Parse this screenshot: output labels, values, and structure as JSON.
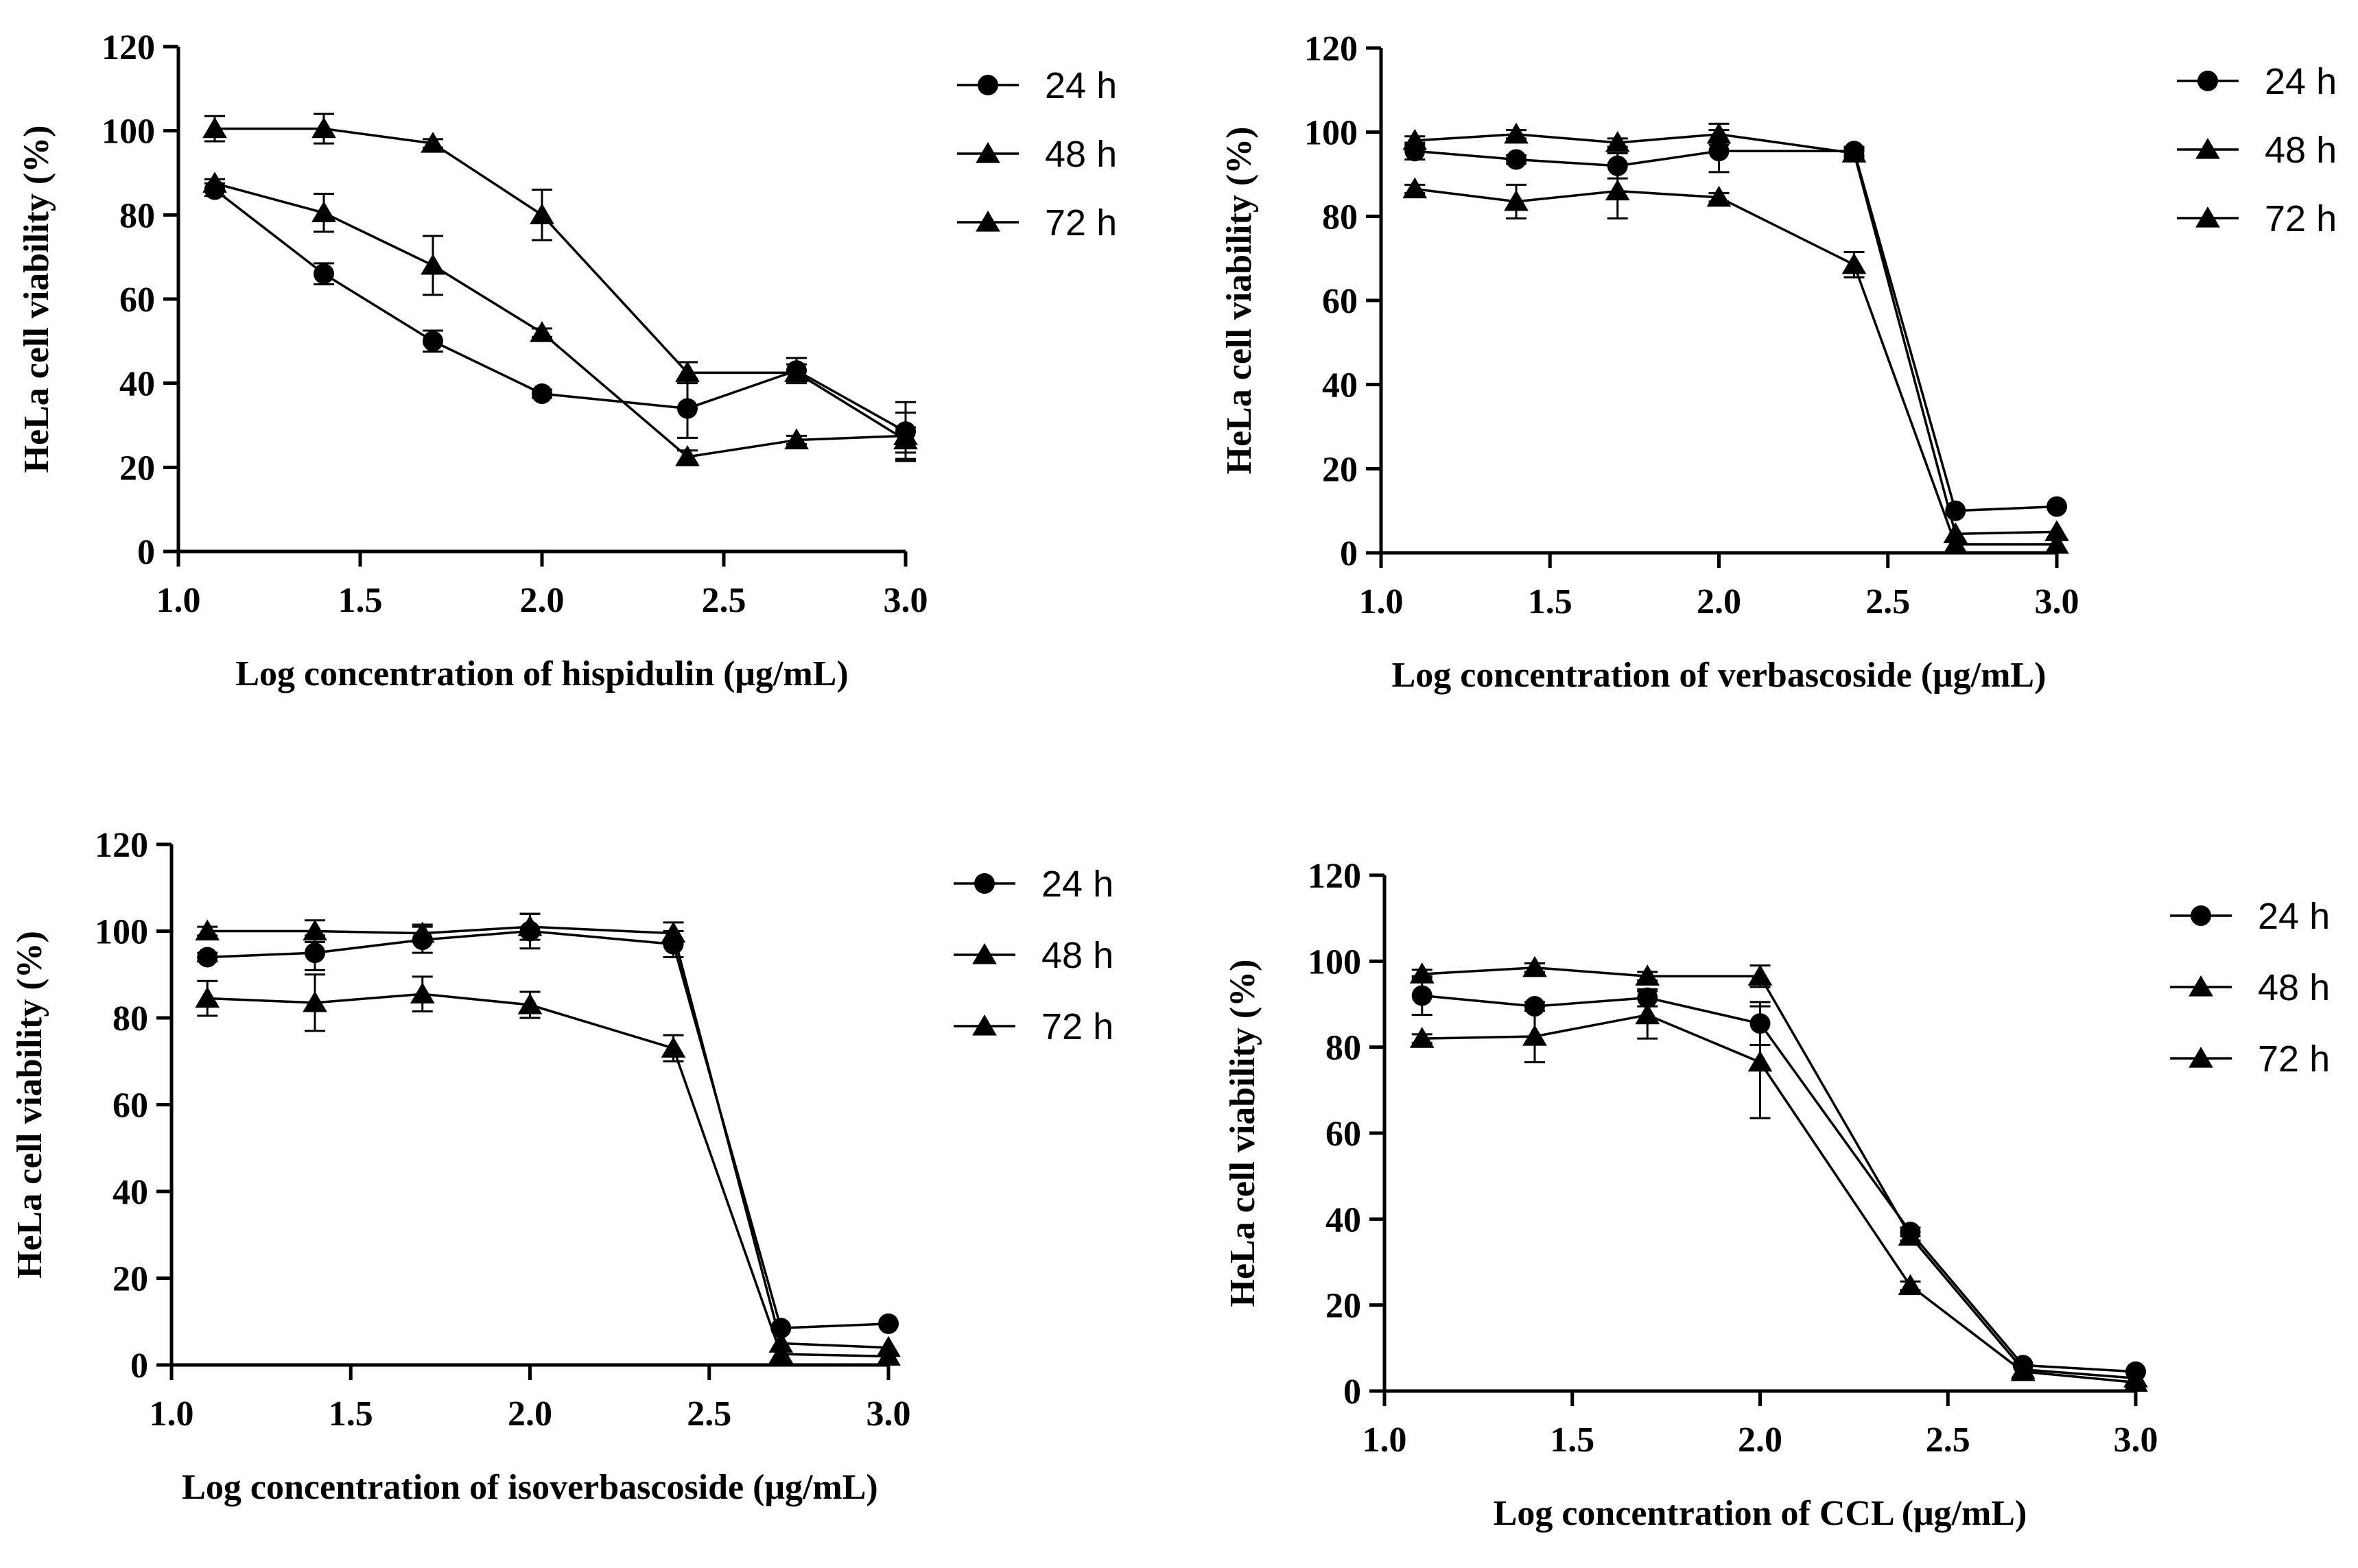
{
  "chart_data": [
    {
      "type": "line",
      "xlabel": "Log concentration of hispidulin (μg/mL)",
      "ylabel": "HeLa cell viability (%)",
      "xlim": [
        1.0,
        3.0
      ],
      "ylim": [
        0,
        120
      ],
      "xticks": [
        "1.0",
        "1.5",
        "2.0",
        "2.5",
        "3.0"
      ],
      "yticks": [
        "0",
        "20",
        "40",
        "60",
        "80",
        "100",
        "120"
      ],
      "legend_position": "top-right",
      "x": [
        1.1,
        1.4,
        1.7,
        2.0,
        2.4,
        2.7,
        3.0
      ],
      "series": [
        {
          "name": "24 h",
          "marker": "circle",
          "values": [
            86,
            66,
            50,
            37.5,
            34,
            43,
            28.5
          ],
          "errors": [
            1.5,
            2.5,
            2.5,
            1,
            7,
            3,
            7
          ]
        },
        {
          "name": "48 h",
          "marker": "triangle",
          "values": [
            100.5,
            100.5,
            97,
            80,
            42.5,
            42.5,
            26.5
          ],
          "errors": [
            3,
            3.5,
            1,
            6,
            2.5,
            2,
            3
          ]
        },
        {
          "name": "72 h",
          "marker": "triangle",
          "values": [
            87.5,
            80.5,
            68,
            52,
            22.5,
            26.5,
            27.5
          ],
          "errors": [
            1,
            4.5,
            7,
            1,
            1.5,
            1,
            5.5
          ]
        }
      ]
    },
    {
      "type": "line",
      "xlabel": "Log concentration of verbascoside (μg/mL)",
      "ylabel": "HeLa cell viability (%)",
      "xlim": [
        1.0,
        3.0
      ],
      "ylim": [
        0,
        120
      ],
      "xticks": [
        "1.0",
        "1.5",
        "2.0",
        "2.5",
        "3.0"
      ],
      "yticks": [
        "0",
        "20",
        "40",
        "60",
        "80",
        "100",
        "120"
      ],
      "legend_position": "top-right",
      "x": [
        1.1,
        1.4,
        1.7,
        2.0,
        2.4,
        2.7,
        3.0
      ],
      "series": [
        {
          "name": "24 h",
          "marker": "circle",
          "values": [
            95.5,
            93.5,
            92,
            95.5,
            95.5,
            10,
            11
          ],
          "errors": [
            2,
            1,
            3,
            5,
            1,
            0.5,
            0.5
          ]
        },
        {
          "name": "48 h",
          "marker": "triangle",
          "values": [
            98,
            99.5,
            97.5,
            99.5,
            95,
            4.5,
            5
          ],
          "errors": [
            1,
            1,
            1,
            2.5,
            1,
            0.5,
            0.5
          ]
        },
        {
          "name": "72 h",
          "marker": "triangle",
          "values": [
            86.5,
            83.5,
            86,
            84.5,
            68.5,
            2,
            2
          ],
          "errors": [
            1,
            4,
            6.5,
            1,
            3,
            0.5,
            0.5
          ]
        }
      ]
    },
    {
      "type": "line",
      "xlabel": "Log concentration of isoverbascoside (μg/mL)",
      "ylabel": "HeLa cell viability (%)",
      "xlim": [
        1.0,
        3.0
      ],
      "ylim": [
        0,
        120
      ],
      "xticks": [
        "1.0",
        "1.5",
        "2.0",
        "2.5",
        "3.0"
      ],
      "yticks": [
        "0",
        "20",
        "40",
        "60",
        "80",
        "100",
        "120"
      ],
      "legend_position": "top-right",
      "x": [
        1.1,
        1.4,
        1.7,
        2.0,
        2.4,
        2.7,
        3.0
      ],
      "series": [
        {
          "name": "24 h",
          "marker": "circle",
          "values": [
            94,
            95,
            98,
            100,
            97,
            8.5,
            9.5
          ],
          "errors": [
            1,
            4,
            3,
            4,
            3,
            0.5,
            0.5
          ]
        },
        {
          "name": "48 h",
          "marker": "triangle",
          "values": [
            100,
            100,
            99.5,
            101,
            99.5,
            5,
            4
          ],
          "errors": [
            1,
            2.5,
            2,
            3,
            2.5,
            0.5,
            0.5
          ]
        },
        {
          "name": "72 h",
          "marker": "triangle",
          "values": [
            84.5,
            83.5,
            85.5,
            83,
            73,
            2.5,
            2
          ],
          "errors": [
            4,
            6.5,
            4,
            3,
            3,
            0.5,
            0.5
          ]
        }
      ]
    },
    {
      "type": "line",
      "xlabel": "Log concentration of CCL (μg/mL)",
      "ylabel": "HeLa cell viability (%)",
      "xlim": [
        1.0,
        3.0
      ],
      "ylim": [
        0,
        120
      ],
      "xticks": [
        "1.0",
        "1.5",
        "2.0",
        "2.5",
        "3.0"
      ],
      "yticks": [
        "0",
        "20",
        "40",
        "60",
        "80",
        "100",
        "120"
      ],
      "legend_position": "top-right",
      "x": [
        1.1,
        1.4,
        1.7,
        2.0,
        2.4,
        2.7,
        3.0
      ],
      "series": [
        {
          "name": "24 h",
          "marker": "circle",
          "values": [
            92,
            89.5,
            91.5,
            85.5,
            37,
            6,
            4.5
          ],
          "errors": [
            4.5,
            1,
            2,
            5,
            1,
            0.5,
            0.5
          ]
        },
        {
          "name": "48 h",
          "marker": "triangle",
          "values": [
            97,
            98.5,
            96.5,
            96.5,
            36,
            5,
            3
          ],
          "errors": [
            1,
            1,
            1,
            2.5,
            1,
            0.5,
            0.5
          ]
        },
        {
          "name": "72 h",
          "marker": "triangle",
          "values": [
            82,
            82.5,
            87.5,
            76.5,
            24.5,
            4.5,
            2
          ],
          "errors": [
            1,
            6,
            5.5,
            13,
            1,
            0.5,
            0.5
          ]
        }
      ]
    }
  ]
}
